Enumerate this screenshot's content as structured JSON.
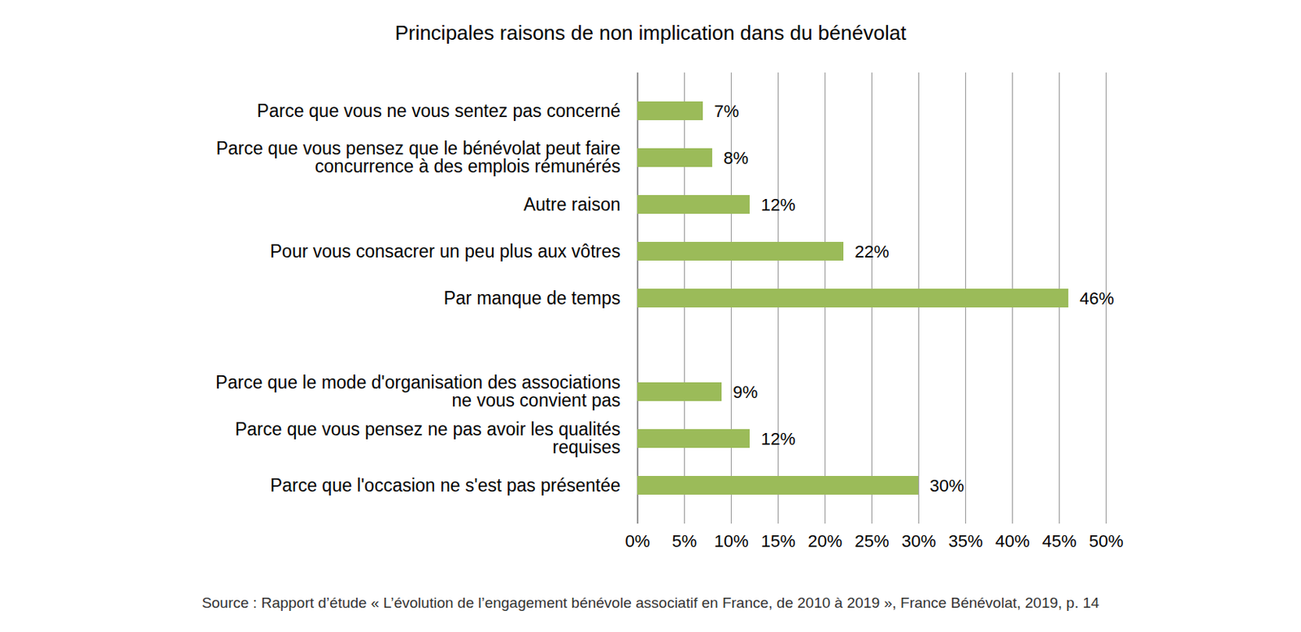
{
  "chart_data": {
    "type": "bar",
    "orientation": "horizontal",
    "title": "Principales raisons de non implication dans du bénévolat",
    "source": "Source : Rapport d’étude « L’évolution de l’engagement bénévole associatif en France, de 2010 à 2019 », France Bénévolat, 2019, p. 14",
    "categories": [
      "Parce que vous ne vous sentez pas concerné",
      "Parce que vous pensez que le bénévolat peut faire concurrence à des emplois rémunérés",
      "Autre raison",
      "Pour vous consacrer un peu plus aux vôtres",
      "Par manque de temps",
      null,
      "Parce que le mode d'organisation des associations ne vous convient pas",
      "Parce que vous pensez ne pas avoir les qualités requises",
      "Parce que l'occasion ne s'est pas présentée"
    ],
    "values": [
      7,
      8,
      12,
      22,
      46,
      null,
      9,
      12,
      30
    ],
    "value_labels": [
      "7%",
      "8%",
      "12%",
      "22%",
      "46%",
      null,
      "9%",
      "12%",
      "30%"
    ],
    "data_labels": true,
    "color": "#9bbb59",
    "xlim": [
      0,
      50
    ],
    "xticks": [
      {
        "value": 0,
        "label": "0%"
      },
      {
        "value": 5,
        "label": "5%"
      },
      {
        "value": 10,
        "label": "10%"
      },
      {
        "value": 15,
        "label": "15%"
      },
      {
        "value": 20,
        "label": "20%"
      },
      {
        "value": 25,
        "label": "25%"
      },
      {
        "value": 30,
        "label": "30%"
      },
      {
        "value": 35,
        "label": "35%"
      },
      {
        "value": 40,
        "label": "40%"
      },
      {
        "value": 45,
        "label": "45%"
      },
      {
        "value": 50,
        "label": "50%"
      }
    ],
    "grid": true
  }
}
